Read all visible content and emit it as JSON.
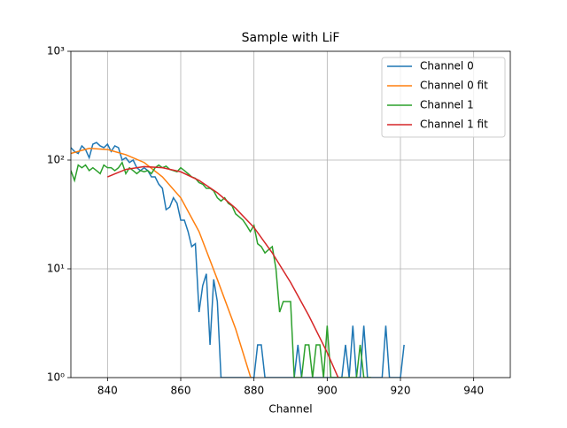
{
  "chart_data": {
    "type": "line",
    "title": "Sample with LiF",
    "x_label": "Channel",
    "xlim": [
      830,
      950
    ],
    "xticks": [
      840,
      860,
      880,
      900,
      920,
      940
    ],
    "ylim": [
      1,
      1000
    ],
    "log_y": true,
    "yticks": [
      {
        "value": 1,
        "label": "10⁰"
      },
      {
        "value": 10,
        "label": "10¹"
      },
      {
        "value": 100,
        "label": "10²"
      },
      {
        "value": 1000,
        "label": "10³"
      }
    ],
    "grid": true,
    "legend": "upper right",
    "series": [
      {
        "name": "Channel 0",
        "color": "#1f77b4",
        "x": [
          830,
          831,
          832,
          833,
          834,
          835,
          836,
          837,
          838,
          839,
          840,
          841,
          842,
          843,
          844,
          845,
          846,
          847,
          848,
          849,
          850,
          851,
          852,
          853,
          854,
          855,
          856,
          857,
          858,
          859,
          860,
          861,
          862,
          863,
          864,
          865,
          866,
          867,
          868,
          869,
          870,
          871,
          872,
          873,
          874,
          875,
          876,
          877,
          878,
          879,
          880,
          881,
          882,
          883,
          884,
          885,
          886,
          887,
          888,
          889,
          890,
          891,
          892,
          893,
          894,
          895,
          896,
          897,
          898,
          899,
          900,
          901,
          902,
          903,
          904,
          905,
          906,
          907,
          908,
          909,
          910,
          911,
          912,
          913,
          914,
          915,
          916,
          917,
          918,
          919,
          920,
          921
        ],
        "values": [
          130,
          120,
          115,
          135,
          125,
          105,
          140,
          145,
          135,
          130,
          140,
          120,
          135,
          130,
          100,
          105,
          95,
          100,
          85,
          80,
          85,
          80,
          70,
          70,
          60,
          55,
          35,
          37,
          45,
          40,
          28,
          28,
          22,
          16,
          17,
          4,
          7,
          9,
          2,
          8,
          5,
          1,
          1,
          1,
          1,
          1,
          1,
          1,
          1,
          1,
          1,
          2,
          2,
          1,
          1,
          1,
          1,
          1,
          1,
          1,
          1,
          1,
          2,
          1,
          1,
          1,
          1,
          1,
          1,
          1,
          1,
          1,
          1,
          1,
          1,
          2,
          1,
          3,
          1,
          1,
          3,
          1,
          1,
          1,
          1,
          1,
          3,
          1,
          1,
          1,
          1,
          2
        ]
      },
      {
        "name": "Channel 0 fit",
        "color": "#ff7f0e",
        "x": [
          830,
          835,
          840,
          845,
          850,
          855,
          860,
          865,
          870,
          875,
          880
        ],
        "values": [
          115,
          128,
          125,
          112,
          95,
          70,
          45,
          22,
          8,
          2.8,
          0.8
        ]
      },
      {
        "name": "Channel 1",
        "color": "#2ca02c",
        "x": [
          830,
          831,
          832,
          833,
          834,
          835,
          836,
          837,
          838,
          839,
          840,
          841,
          842,
          843,
          844,
          845,
          846,
          847,
          848,
          849,
          850,
          851,
          852,
          853,
          854,
          855,
          856,
          857,
          858,
          859,
          860,
          861,
          862,
          863,
          864,
          865,
          866,
          867,
          868,
          869,
          870,
          871,
          872,
          873,
          874,
          875,
          876,
          877,
          878,
          879,
          880,
          881,
          882,
          883,
          884,
          885,
          886,
          887,
          888,
          889,
          890,
          891,
          892,
          893,
          894,
          895,
          896,
          897,
          898,
          899,
          900,
          901,
          902,
          903,
          904,
          905,
          906,
          907,
          908,
          909,
          910,
          911,
          912
        ],
        "values": [
          80,
          65,
          90,
          85,
          90,
          80,
          85,
          80,
          75,
          90,
          85,
          85,
          80,
          85,
          95,
          75,
          85,
          80,
          75,
          80,
          78,
          80,
          75,
          85,
          90,
          85,
          88,
          82,
          80,
          78,
          85,
          80,
          75,
          70,
          68,
          62,
          60,
          55,
          55,
          52,
          45,
          42,
          45,
          40,
          38,
          32,
          30,
          28,
          25,
          22,
          25,
          17,
          16,
          14,
          15,
          16,
          10,
          4,
          5,
          5,
          5,
          1,
          1,
          1,
          2,
          2,
          1,
          2,
          2,
          1,
          3,
          1,
          1,
          1,
          1,
          1,
          1,
          1,
          1,
          2,
          1,
          1,
          1
        ]
      },
      {
        "name": "Channel 1 fit",
        "color": "#d62728",
        "x": [
          840,
          845,
          850,
          855,
          860,
          865,
          870,
          875,
          880,
          885,
          890,
          895,
          900,
          905
        ],
        "values": [
          70,
          82,
          87,
          85,
          78,
          65,
          50,
          36,
          24,
          14,
          7.5,
          3.7,
          1.7,
          0.7
        ]
      }
    ]
  }
}
